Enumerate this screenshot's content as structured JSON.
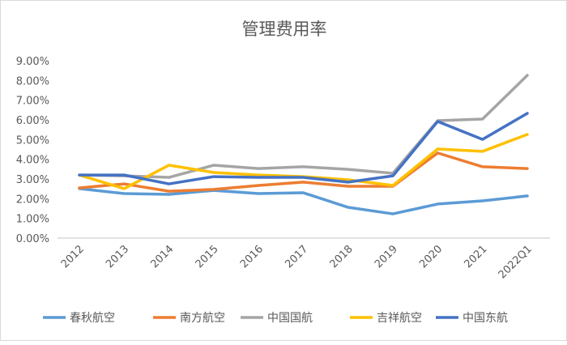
{
  "chart_data": {
    "type": "line",
    "title": "管理费用率",
    "xlabel": "",
    "ylabel": "",
    "categories": [
      "2012",
      "2013",
      "2014",
      "2015",
      "2016",
      "2017",
      "2018",
      "2019",
      "2020",
      "2021",
      "2022Q1"
    ],
    "ylim": [
      0,
      9
    ],
    "yticks": [
      "0.00%",
      "1.00%",
      "2.00%",
      "3.00%",
      "4.00%",
      "5.00%",
      "6.00%",
      "7.00%",
      "8.00%",
      "9.00%"
    ],
    "grid": false,
    "legend_position": "bottom",
    "series": [
      {
        "name": "春秋航空",
        "color": "#5B9BD5",
        "values": [
          2.51,
          2.26,
          2.22,
          2.42,
          2.26,
          2.3,
          1.56,
          1.23,
          1.73,
          1.89,
          2.14
        ]
      },
      {
        "name": "南方航空",
        "color": "#ED7D31",
        "values": [
          2.55,
          2.75,
          2.38,
          2.47,
          2.67,
          2.84,
          2.63,
          2.63,
          4.32,
          3.62,
          3.53
        ]
      },
      {
        "name": "中国国航",
        "color": "#A5A5A5",
        "values": [
          3.2,
          3.16,
          3.08,
          3.7,
          3.53,
          3.62,
          3.49,
          3.29,
          5.96,
          6.04,
          8.26
        ]
      },
      {
        "name": "吉祥航空",
        "color": "#FFC000",
        "values": [
          3.2,
          2.51,
          3.7,
          3.33,
          3.2,
          3.12,
          2.96,
          2.67,
          4.52,
          4.4,
          5.26
        ]
      },
      {
        "name": "中国东航",
        "color": "#4472C4",
        "values": [
          3.2,
          3.2,
          2.75,
          3.12,
          3.08,
          3.08,
          2.84,
          3.16,
          5.92,
          5.01,
          6.33
        ]
      }
    ]
  }
}
